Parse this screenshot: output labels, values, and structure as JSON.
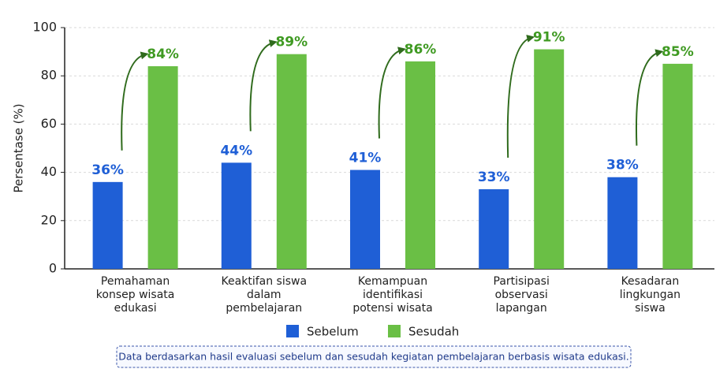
{
  "chart_data": {
    "type": "bar",
    "ylabel": "Persentase (%)",
    "categories": [
      [
        "Pemahaman",
        "konsep wisata",
        "edukasi"
      ],
      [
        "Keaktifan siswa",
        "dalam",
        "pembelajaran"
      ],
      [
        "Kemampuan",
        "identifikasi",
        "potensi wisata"
      ],
      [
        "Partisipasi",
        "observasi",
        "lapangan"
      ],
      [
        "Kesadaran",
        "lingkungan",
        "siswa"
      ]
    ],
    "series": [
      {
        "name": "Sebelum",
        "color": "#1f5fd6",
        "label_color": "#1f5fd6",
        "values": [
          36,
          44,
          41,
          33,
          38
        ],
        "value_labels": [
          "36%",
          "44%",
          "41%",
          "33%",
          "38%"
        ]
      },
      {
        "name": "Sesudah",
        "color": "#6abf45",
        "label_color": "#3f9a22",
        "values": [
          84,
          89,
          86,
          91,
          85
        ],
        "value_labels": [
          "84%",
          "89%",
          "86%",
          "91%",
          "85%"
        ]
      }
    ],
    "ylim": [
      0,
      100
    ],
    "yticks": [
      0,
      20,
      40,
      60,
      80,
      100
    ],
    "grid": true,
    "note": "Data berdasarkan hasil evaluasi sebelum dan sesudah kegiatan pembelajaran berbasis wisata edukasi."
  }
}
